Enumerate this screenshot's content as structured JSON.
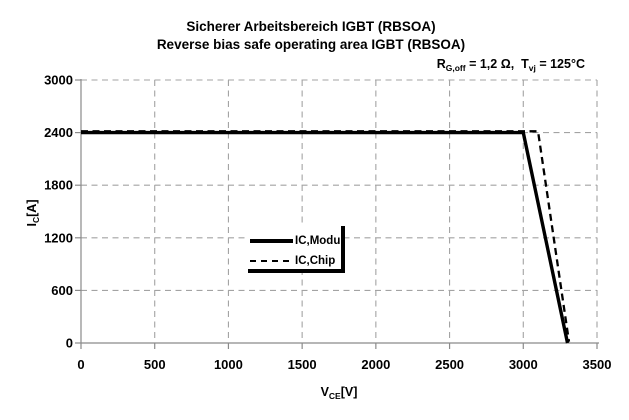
{
  "titles": {
    "line1": "Sicherer Arbeitsbereich IGBT (RBSOA)",
    "line2": "Reverse bias safe operating area IGBT (RBSOA)"
  },
  "annotation": {
    "r_base": "R",
    "r_sub": "G,off",
    "mid": " = 1,2 Ω,  T",
    "t_sub": "vj",
    "tail": " = 125°C"
  },
  "axes": {
    "y_title": {
      "base": "I",
      "sub": "C",
      "unit": "[A]"
    },
    "x_title": {
      "base": "V",
      "sub": "CE",
      "unit": "[V]"
    }
  },
  "legend": {
    "items": [
      {
        "label": "IC,Modul",
        "style": "solid"
      },
      {
        "label": "IC,Chip",
        "style": "dashed"
      }
    ]
  },
  "colors": {
    "line": "#000000",
    "grid": "#a3a3a3",
    "axis": "#8a8a8a",
    "text": "#000000",
    "background": "#ffffff"
  },
  "chart_data": {
    "type": "line",
    "title": "Sicherer Arbeitsbereich IGBT (RBSOA) / Reverse bias safe operating area IGBT (RBSOA)",
    "subtitle": "RG,off = 1,2 Ohm, Tvj = 125 degC",
    "xlabel": "VCE [V]",
    "ylabel": "IC [A]",
    "xlim": [
      0,
      3500
    ],
    "ylim": [
      0,
      3000
    ],
    "x_ticks": [
      0,
      500,
      1000,
      1500,
      2000,
      2500,
      3000,
      3500
    ],
    "y_ticks": [
      0,
      600,
      1200,
      1800,
      2400,
      3000
    ],
    "grid": "dashed",
    "legend_position": "inside-center-left",
    "series": [
      {
        "name": "IC,Modul",
        "style": "solid",
        "color": "#000000",
        "points": [
          [
            0,
            2400
          ],
          [
            3000,
            2400
          ],
          [
            3300,
            0
          ]
        ]
      },
      {
        "name": "IC,Chip",
        "style": "dashed",
        "color": "#000000",
        "points": [
          [
            0,
            2400
          ],
          [
            3100,
            2400
          ],
          [
            3310,
            0
          ]
        ]
      }
    ]
  }
}
